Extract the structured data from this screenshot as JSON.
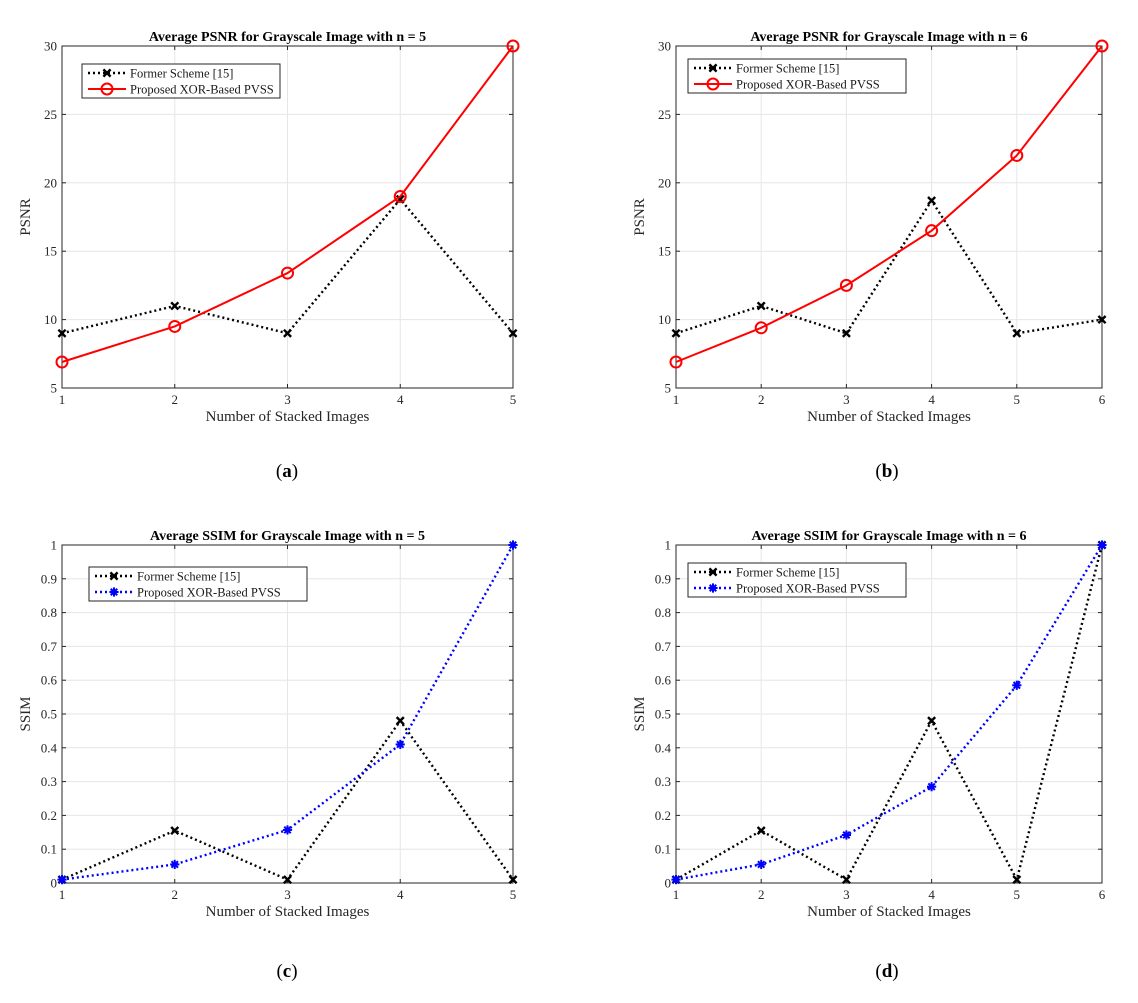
{
  "chart_data": [
    {
      "type": "line",
      "panel": "a",
      "title": "Average PSNR for Grayscale Image with n = 5",
      "xlabel": "Number of Stacked Images",
      "ylabel": "PSNR",
      "x": [
        1,
        2,
        3,
        4,
        5
      ],
      "xlim": [
        1,
        5
      ],
      "ylim": [
        5,
        30
      ],
      "xticks": [
        "1",
        "2",
        "3",
        "4",
        "5"
      ],
      "yticks": [
        "5",
        "10",
        "15",
        "20",
        "25",
        "30"
      ],
      "grid": true,
      "legend_position": "top-left",
      "caption_letter": "a",
      "series": [
        {
          "name": "Former Scheme [15]",
          "color": "#000000",
          "line": "dotted",
          "marker": "x",
          "values": [
            9,
            11,
            9,
            18.8,
            9
          ]
        },
        {
          "name": "Proposed XOR-Based PVSS",
          "color": "#ff0000",
          "line": "solid",
          "marker": "o",
          "values": [
            6.9,
            9.5,
            13.4,
            19,
            30
          ]
        }
      ]
    },
    {
      "type": "line",
      "panel": "b",
      "title": "Average PSNR for Grayscale Image with n = 6",
      "xlabel": "Number of Stacked Images",
      "ylabel": "PSNR",
      "x": [
        1,
        2,
        3,
        4,
        5,
        6
      ],
      "xlim": [
        1,
        6
      ],
      "ylim": [
        5,
        30
      ],
      "xticks": [
        "1",
        "2",
        "3",
        "4",
        "5",
        "6"
      ],
      "yticks": [
        "5",
        "10",
        "15",
        "20",
        "25",
        "30"
      ],
      "grid": true,
      "legend_position": "top-left",
      "caption_letter": "b",
      "series": [
        {
          "name": "Former Scheme [15]",
          "color": "#000000",
          "line": "dotted",
          "marker": "x",
          "values": [
            9,
            11,
            9,
            18.7,
            9,
            10
          ]
        },
        {
          "name": "Proposed XOR-Based PVSS",
          "color": "#ff0000",
          "line": "solid",
          "marker": "o",
          "values": [
            6.9,
            9.4,
            12.5,
            16.5,
            22,
            30
          ]
        }
      ]
    },
    {
      "type": "line",
      "panel": "c",
      "title": "Average SSIM for Grayscale Image with n = 5",
      "xlabel": "Number of Stacked Images",
      "ylabel": "SSIM",
      "x": [
        1,
        2,
        3,
        4,
        5
      ],
      "xlim": [
        1,
        5
      ],
      "ylim": [
        0,
        1
      ],
      "xticks": [
        "1",
        "2",
        "3",
        "4",
        "5"
      ],
      "yticks": [
        "0",
        "0.1",
        "0.2",
        "0.3",
        "0.4",
        "0.5",
        "0.6",
        "0.7",
        "0.8",
        "0.9",
        "1"
      ],
      "grid": true,
      "legend_position": "top-left",
      "caption_letter": "c",
      "series": [
        {
          "name": "Former Scheme [15]",
          "color": "#000000",
          "line": "dotted",
          "marker": "x",
          "values": [
            0.01,
            0.155,
            0.01,
            0.48,
            0.01
          ]
        },
        {
          "name": "Proposed XOR-Based PVSS",
          "color": "#0000ff",
          "line": "dotted",
          "marker": "*",
          "values": [
            0.01,
            0.055,
            0.157,
            0.41,
            1.0
          ]
        }
      ]
    },
    {
      "type": "line",
      "panel": "d",
      "title": "Average SSIM for Grayscale Image with n = 6",
      "xlabel": "Number of Stacked Images",
      "ylabel": "SSIM",
      "x": [
        1,
        2,
        3,
        4,
        5,
        6
      ],
      "xlim": [
        1,
        6
      ],
      "ylim": [
        0,
        1
      ],
      "xticks": [
        "1",
        "2",
        "3",
        "4",
        "5",
        "6"
      ],
      "yticks": [
        "0",
        "0.1",
        "0.2",
        "0.3",
        "0.4",
        "0.5",
        "0.6",
        "0.7",
        "0.8",
        "0.9",
        "1"
      ],
      "grid": true,
      "legend_position": "top-left",
      "caption_letter": "d",
      "series": [
        {
          "name": "Former Scheme [15]",
          "color": "#000000",
          "line": "dotted",
          "marker": "x",
          "values": [
            0.01,
            0.155,
            0.01,
            0.48,
            0.01,
            1.0
          ]
        },
        {
          "name": "Proposed XOR-Based PVSS",
          "color": "#0000ff",
          "line": "dotted",
          "marker": "*",
          "values": [
            0.01,
            0.055,
            0.142,
            0.285,
            0.585,
            1.0
          ]
        }
      ]
    }
  ]
}
